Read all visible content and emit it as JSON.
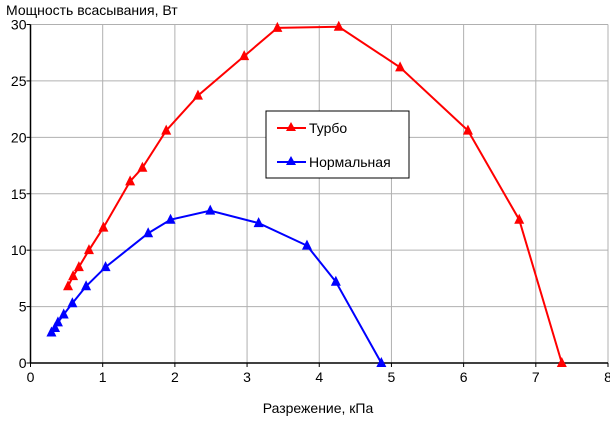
{
  "chart_data": {
    "type": "line",
    "title": "",
    "ylabel": "Мощность всасывания, Вт",
    "xlabel": "Разрежение, кПа",
    "xlim": [
      0,
      8
    ],
    "ylim": [
      0,
      30
    ],
    "xticks": [
      "0",
      "1",
      "2",
      "3",
      "4",
      "5",
      "6",
      "7",
      "8"
    ],
    "yticks": [
      "0",
      "5",
      "10",
      "15",
      "20",
      "25",
      "30"
    ],
    "grid": true,
    "legend_position": "center",
    "series": [
      {
        "name": "Турбо",
        "color": "#ff0000",
        "marker": "triangle",
        "x": [
          0.52,
          0.59,
          0.67,
          0.81,
          1.01,
          1.38,
          1.55,
          1.88,
          2.32,
          2.96,
          3.42,
          4.27,
          5.12,
          6.06,
          6.77,
          7.36
        ],
        "y": [
          6.8,
          7.7,
          8.5,
          10.0,
          12.0,
          16.1,
          17.3,
          20.6,
          23.7,
          27.2,
          29.7,
          29.8,
          26.2,
          20.6,
          12.7,
          0
        ]
      },
      {
        "name": "Нормальная",
        "color": "#0000ff",
        "marker": "triangle",
        "x": [
          0.29,
          0.34,
          0.38,
          0.46,
          0.58,
          0.77,
          1.04,
          1.63,
          1.94,
          2.49,
          3.16,
          3.83,
          4.23,
          4.86
        ],
        "y": [
          2.7,
          3.1,
          3.6,
          4.3,
          5.3,
          6.8,
          8.5,
          11.5,
          12.7,
          13.5,
          12.4,
          10.4,
          7.2,
          0
        ]
      }
    ]
  }
}
